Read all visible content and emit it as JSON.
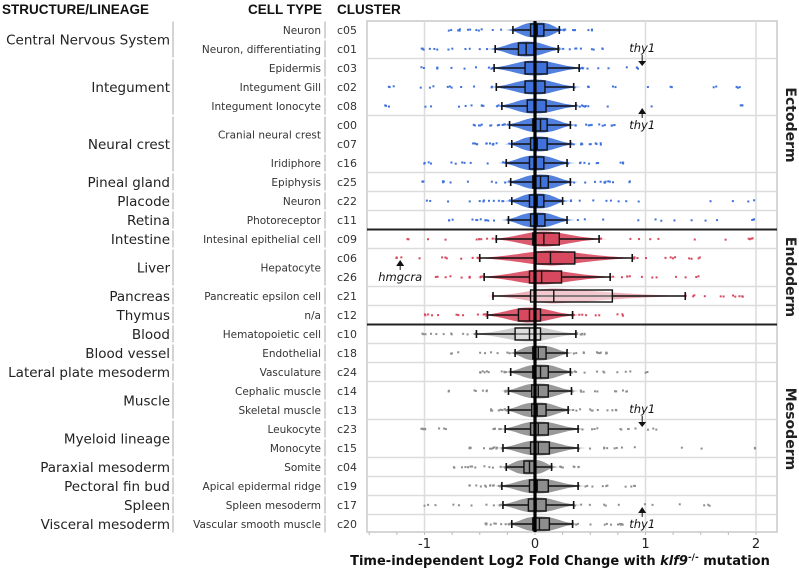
{
  "chart_data": {
    "type": "box",
    "orientation": "horizontal",
    "headers": {
      "structure": "STRUCTURE/LINEAGE",
      "cell_type": "CELL TYPE",
      "cluster": "CLUSTER"
    },
    "xlabel_parts": {
      "pre": "Time-independent Log2 Fold Change with ",
      "gene": "klf9",
      "sup": "-/-",
      "post": " mutation"
    },
    "xlim": [
      -1.52,
      2.19
    ],
    "xticks": [
      -1,
      0,
      1,
      2
    ],
    "xtick_labels": [
      "-1",
      "0",
      "1",
      "2"
    ],
    "grid": true,
    "colors": {
      "Ectoderm": "#3f72dc",
      "Endoderm": "#d8485e",
      "Mesoderm": "#8e8e8e"
    },
    "germ_layers": [
      {
        "name": "Ectoderm",
        "clusters": [
          "c05",
          "c01",
          "c03",
          "c02",
          "c08",
          "c00",
          "c07",
          "c16",
          "c25",
          "c22",
          "c11"
        ]
      },
      {
        "name": "Endoderm",
        "clusters": [
          "c09",
          "c06",
          "c26",
          "c21",
          "c12"
        ]
      },
      {
        "name": "Mesoderm",
        "clusters": [
          "c10",
          "c18",
          "c24",
          "c14",
          "c13",
          "c23",
          "c15",
          "c04",
          "c19",
          "c17",
          "c20"
        ]
      }
    ],
    "structures": [
      {
        "label": "Central Nervous System",
        "clusters": [
          "c05",
          "c01"
        ]
      },
      {
        "label": "Integument",
        "clusters": [
          "c03",
          "c02",
          "c08"
        ]
      },
      {
        "label": "Neural crest",
        "clusters": [
          "c00",
          "c07",
          "c16"
        ]
      },
      {
        "label": "Pineal gland",
        "clusters": [
          "c25"
        ]
      },
      {
        "label": "Placode",
        "clusters": [
          "c22"
        ]
      },
      {
        "label": "Retina",
        "clusters": [
          "c11"
        ]
      },
      {
        "label": "Intestine",
        "clusters": [
          "c09"
        ]
      },
      {
        "label": "Liver",
        "clusters": [
          "c06",
          "c26"
        ]
      },
      {
        "label": "Pancreas",
        "clusters": [
          "c21"
        ]
      },
      {
        "label": "Thymus",
        "clusters": [
          "c12"
        ]
      },
      {
        "label": "Blood",
        "clusters": [
          "c10"
        ]
      },
      {
        "label": "Blood vessel",
        "clusters": [
          "c18"
        ]
      },
      {
        "label": "Lateral plate mesoderm",
        "clusters": [
          "c24"
        ]
      },
      {
        "label": "Muscle",
        "clusters": [
          "c14",
          "c13"
        ]
      },
      {
        "label": "Myeloid lineage",
        "clusters": [
          "c23",
          "c15"
        ]
      },
      {
        "label": "Paraxial mesoderm",
        "clusters": [
          "c04"
        ]
      },
      {
        "label": "Pectoral fin bud",
        "clusters": [
          "c19"
        ]
      },
      {
        "label": "Spleen",
        "clusters": [
          "c17"
        ]
      },
      {
        "label": "Visceral mesoderm",
        "clusters": [
          "c20"
        ]
      }
    ],
    "cell_types": [
      {
        "label": "Neuron",
        "clusters": [
          "c05"
        ]
      },
      {
        "label": "Neuron, differentiating",
        "clusters": [
          "c01"
        ]
      },
      {
        "label": "Epidermis",
        "clusters": [
          "c03"
        ]
      },
      {
        "label": "Integument Gill",
        "clusters": [
          "c02"
        ]
      },
      {
        "label": "Integument Ionocyte",
        "clusters": [
          "c08"
        ]
      },
      {
        "label": "Cranial neural crest",
        "clusters": [
          "c00",
          "c07"
        ]
      },
      {
        "label": "Iridiphore",
        "clusters": [
          "c16"
        ]
      },
      {
        "label": "Epiphysis",
        "clusters": [
          "c25"
        ]
      },
      {
        "label": "Neuron",
        "clusters": [
          "c22"
        ]
      },
      {
        "label": "Photoreceptor",
        "clusters": [
          "c11"
        ]
      },
      {
        "label": "Intesinal epithelial cell",
        "clusters": [
          "c09"
        ]
      },
      {
        "label": "Hepatocyte",
        "clusters": [
          "c06",
          "c26"
        ]
      },
      {
        "label": "Pancreatic epsilon cell",
        "clusters": [
          "c21"
        ]
      },
      {
        "label": "n/a",
        "clusters": [
          "c12"
        ]
      },
      {
        "label": "Hematopoietic cell",
        "clusters": [
          "c10"
        ]
      },
      {
        "label": "Endothelial",
        "clusters": [
          "c18"
        ]
      },
      {
        "label": "Vasculature",
        "clusters": [
          "c24"
        ]
      },
      {
        "label": "Cephalic muscle",
        "clusters": [
          "c14"
        ]
      },
      {
        "label": "Skeletal muscle",
        "clusters": [
          "c13"
        ]
      },
      {
        "label": "Leukocyte",
        "clusters": [
          "c23"
        ]
      },
      {
        "label": "Monocyte",
        "clusters": [
          "c15"
        ]
      },
      {
        "label": "Somite",
        "clusters": [
          "c04"
        ]
      },
      {
        "label": "Apical epidermal ridge",
        "clusters": [
          "c19"
        ]
      },
      {
        "label": "Spleen mesoderm",
        "clusters": [
          "c17"
        ]
      },
      {
        "label": "Vascular smooth muscle",
        "clusters": [
          "c20"
        ]
      }
    ],
    "series": [
      {
        "cluster": "c05",
        "layer": "Ectoderm",
        "whisker": [
          -0.2,
          0.22
        ],
        "q1": -0.04,
        "median": 0.02,
        "q3": 0.08,
        "outlier_range": [
          -0.78,
          0.52
        ]
      },
      {
        "cluster": "c01",
        "layer": "Ectoderm",
        "whisker": [
          -0.36,
          0.21
        ],
        "q1": -0.15,
        "median": -0.08,
        "q3": -0.01,
        "outlier_range": [
          -1.03,
          0.62
        ]
      },
      {
        "cluster": "c03",
        "layer": "Ectoderm",
        "whisker": [
          -0.37,
          0.4
        ],
        "q1": -0.09,
        "median": 0.0,
        "q3": 0.11,
        "outlier_range": [
          -1.03,
          0.94
        ]
      },
      {
        "cluster": "c02",
        "layer": "Ectoderm",
        "whisker": [
          -0.35,
          0.35
        ],
        "q1": -0.09,
        "median": 0.0,
        "q3": 0.09,
        "outlier_range": [
          -1.36,
          1.88
        ]
      },
      {
        "cluster": "c08",
        "layer": "Ectoderm",
        "whisker": [
          -0.3,
          0.37
        ],
        "q1": -0.07,
        "median": 0.0,
        "q3": 0.1,
        "outlier_range": [
          -1.36,
          1.88
        ]
      },
      {
        "cluster": "c00",
        "layer": "Ectoderm",
        "whisker": [
          -0.23,
          0.32
        ],
        "q1": -0.02,
        "median": 0.05,
        "q3": 0.11,
        "outlier_range": [
          -0.56,
          0.73
        ]
      },
      {
        "cluster": "c07",
        "layer": "Ectoderm",
        "whisker": [
          -0.21,
          0.32
        ],
        "q1": -0.04,
        "median": 0.02,
        "q3": 0.11,
        "outlier_range": [
          -0.56,
          0.6
        ]
      },
      {
        "cluster": "c16",
        "layer": "Ectoderm",
        "whisker": [
          -0.26,
          0.29
        ],
        "q1": -0.05,
        "median": 0.01,
        "q3": 0.08,
        "outlier_range": [
          -1.03,
          0.82
        ]
      },
      {
        "cluster": "c25",
        "layer": "Ectoderm",
        "whisker": [
          -0.22,
          0.32
        ],
        "q1": -0.02,
        "median": 0.05,
        "q3": 0.12,
        "outlier_range": [
          -1.03,
          0.86
        ]
      },
      {
        "cluster": "c22",
        "layer": "Ectoderm",
        "whisker": [
          -0.21,
          0.25
        ],
        "q1": -0.05,
        "median": 0.02,
        "q3": 0.08,
        "outlier_range": [
          -0.98,
          2.0
        ]
      },
      {
        "cluster": "c11",
        "layer": "Ectoderm",
        "whisker": [
          -0.24,
          0.29
        ],
        "q1": -0.04,
        "median": 0.02,
        "q3": 0.09,
        "outlier_range": [
          -0.78,
          2.0
        ]
      },
      {
        "cluster": "c09",
        "layer": "Endoderm",
        "whisker": [
          -0.35,
          0.58
        ],
        "q1": -0.02,
        "median": 0.08,
        "q3": 0.22,
        "outlier_range": [
          -1.18,
          2.0
        ]
      },
      {
        "cluster": "c06",
        "layer": "Endoderm",
        "whisker": [
          -0.5,
          0.88
        ],
        "q1": 0.01,
        "median": 0.14,
        "q3": 0.36,
        "outlier_range": [
          -1.28,
          1.5
        ]
      },
      {
        "cluster": "c26",
        "layer": "Endoderm",
        "whisker": [
          -0.46,
          0.68
        ],
        "q1": -0.05,
        "median": 0.06,
        "q3": 0.24,
        "outlier_range": [
          -0.9,
          1.5
        ]
      },
      {
        "cluster": "c21",
        "layer": "Endoderm",
        "whisker": [
          -0.38,
          1.36
        ],
        "q1": -0.04,
        "median": 0.17,
        "q3": 0.7,
        "outlier_range": [
          -0.38,
          1.9
        ],
        "hollow": true
      },
      {
        "cluster": "c12",
        "layer": "Endoderm",
        "whisker": [
          -0.43,
          0.34
        ],
        "q1": -0.15,
        "median": -0.05,
        "q3": 0.05,
        "outlier_range": [
          -1.0,
          0.8
        ]
      },
      {
        "cluster": "c10",
        "layer": "Mesoderm",
        "whisker": [
          -0.53,
          0.37
        ],
        "q1": -0.18,
        "median": -0.05,
        "q3": 0.05,
        "outlier_range": [
          -1.03,
          0.45
        ],
        "hollow": true
      },
      {
        "cluster": "c18",
        "layer": "Mesoderm",
        "whisker": [
          -0.18,
          0.29
        ],
        "q1": -0.02,
        "median": 0.03,
        "q3": 0.1,
        "outlier_range": [
          -0.78,
          0.66
        ]
      },
      {
        "cluster": "c24",
        "layer": "Mesoderm",
        "whisker": [
          -0.22,
          0.32
        ],
        "q1": -0.02,
        "median": 0.05,
        "q3": 0.12,
        "outlier_range": [
          -0.5,
          1.03
        ]
      },
      {
        "cluster": "c14",
        "layer": "Mesoderm",
        "whisker": [
          -0.24,
          0.33
        ],
        "q1": -0.03,
        "median": 0.03,
        "q3": 0.12,
        "outlier_range": [
          -0.8,
          0.85
        ]
      },
      {
        "cluster": "c13",
        "layer": "Mesoderm",
        "whisker": [
          -0.24,
          0.3
        ],
        "q1": -0.03,
        "median": 0.02,
        "q3": 0.1,
        "outlier_range": [
          -0.4,
          0.75
        ]
      },
      {
        "cluster": "c23",
        "layer": "Mesoderm",
        "whisker": [
          -0.27,
          0.39
        ],
        "q1": -0.04,
        "median": 0.03,
        "q3": 0.12,
        "outlier_range": [
          -1.03,
          1.1
        ]
      },
      {
        "cluster": "c15",
        "layer": "Mesoderm",
        "whisker": [
          -0.29,
          0.39
        ],
        "q1": -0.04,
        "median": 0.03,
        "q3": 0.13,
        "outlier_range": [
          -0.6,
          2.0
        ]
      },
      {
        "cluster": "c04",
        "layer": "Mesoderm",
        "whisker": [
          -0.26,
          0.15
        ],
        "q1": -0.1,
        "median": -0.05,
        "q3": 0.0,
        "outlier_range": [
          -0.75,
          0.4
        ]
      },
      {
        "cluster": "c19",
        "layer": "Mesoderm",
        "whisker": [
          -0.3,
          0.39
        ],
        "q1": -0.05,
        "median": 0.02,
        "q3": 0.12,
        "outlier_range": [
          -0.6,
          0.92
        ]
      },
      {
        "cluster": "c17",
        "layer": "Mesoderm",
        "whisker": [
          -0.29,
          0.35
        ],
        "q1": -0.06,
        "median": 0.01,
        "q3": 0.1,
        "outlier_range": [
          -1.0,
          1.58
        ]
      },
      {
        "cluster": "c20",
        "layer": "Mesoderm",
        "whisker": [
          -0.21,
          0.34
        ],
        "q1": -0.02,
        "median": 0.04,
        "q3": 0.13,
        "outlier_range": [
          -0.45,
          0.8
        ]
      }
    ],
    "annotations": [
      {
        "text": "thy1",
        "x": 0.97,
        "cluster": "c03",
        "arrow": "down"
      },
      {
        "text": "thy1",
        "x": 0.97,
        "cluster": "c08",
        "arrow": "up"
      },
      {
        "text": "hmgcra",
        "x": -1.22,
        "cluster": "c06",
        "arrow": "up"
      },
      {
        "text": "thy1",
        "x": 0.97,
        "cluster": "c23",
        "arrow": "down"
      },
      {
        "text": "thy1",
        "x": 0.97,
        "cluster": "c17",
        "arrow": "up"
      }
    ]
  }
}
